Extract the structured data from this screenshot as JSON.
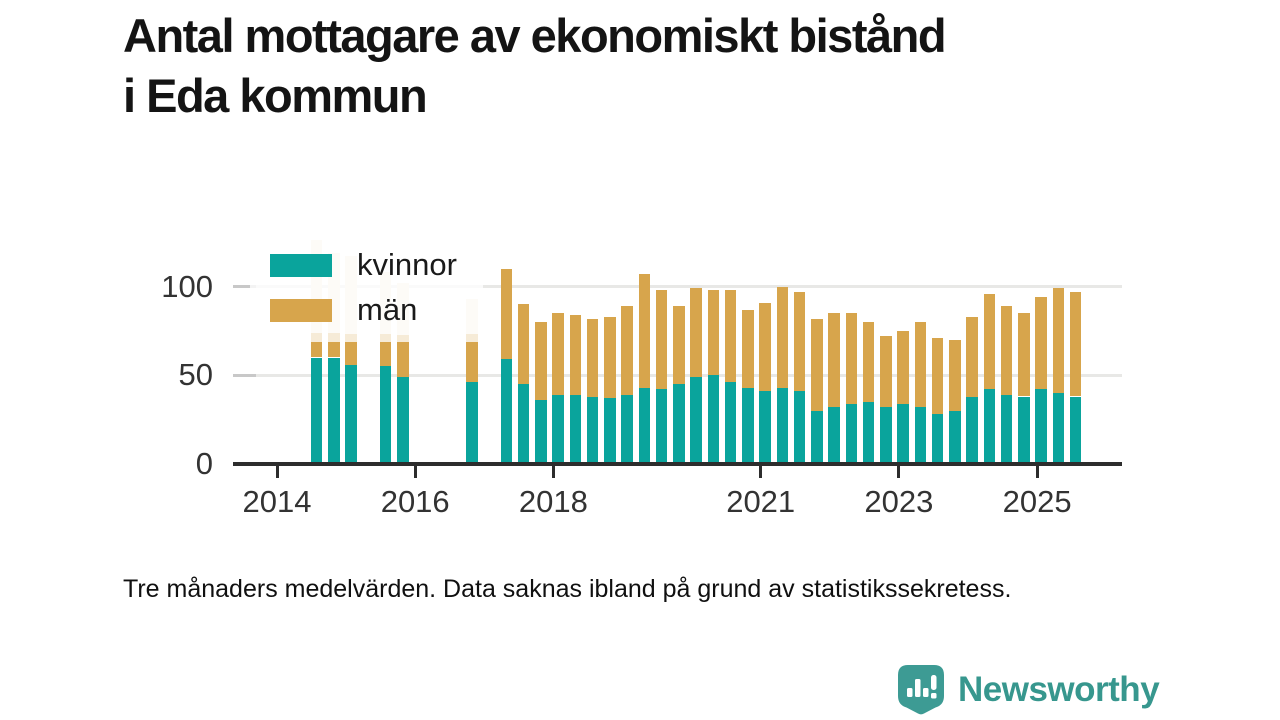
{
  "title": {
    "line1": "Antal mottagare av ekonomiskt bistånd",
    "line2": "i Eda kommun"
  },
  "footnote": "Tre månaders medelvärden. Data saknas ibland på grund av statistikssekretess.",
  "logo": {
    "text": "Newsworthy"
  },
  "legend": [
    {
      "label": "kvinnor",
      "color": "#0aa49c"
    },
    {
      "label": "män",
      "color": "#d7a54c"
    }
  ],
  "colors": {
    "kvinnor": "#0aa49c",
    "man": "#d7a54c",
    "saknas": "#f4ecdb",
    "axis": "#2d2d2d",
    "grid": "#e8e8e6",
    "grid_stub": "#c8c8c8",
    "tick_text": "#333333",
    "logo": "#37978e"
  },
  "chart_data": {
    "type": "bar",
    "stacked": true,
    "title": "Antal mottagare av ekonomiskt bistånd i Eda kommun",
    "xlabel": "",
    "ylabel": "",
    "ylim": [
      0,
      130
    ],
    "yticks": [
      0,
      50,
      100
    ],
    "xticks": [
      2014,
      2016,
      2018,
      2021,
      2023,
      2025
    ],
    "legend_position": "top-left",
    "grid": true,
    "series_names": [
      "kvinnor",
      "män",
      "data saknas"
    ],
    "bars": [
      {
        "period": "2014 Q3",
        "kvinnor": 60,
        "man": 14,
        "saknas": 52
      },
      {
        "period": "2014 Q4",
        "kvinnor": 60,
        "man": 14,
        "saknas": 45
      },
      {
        "period": "2015 Q1",
        "kvinnor": 56,
        "man": 17,
        "saknas": 44
      },
      {
        "period": "2015 Q3",
        "kvinnor": 55,
        "man": 18,
        "saknas": 35
      },
      {
        "period": "2015 Q4",
        "kvinnor": 49,
        "man": 24,
        "saknas": 29
      },
      {
        "period": "2016 Q4",
        "kvinnor": 46,
        "man": 27,
        "saknas": 20
      },
      {
        "period": "2017 Q2",
        "kvinnor": 59,
        "man": 51,
        "saknas": 0
      },
      {
        "period": "2017 Q3",
        "kvinnor": 45,
        "man": 45,
        "saknas": 0
      },
      {
        "period": "2017 Q4",
        "kvinnor": 36,
        "man": 44,
        "saknas": 0
      },
      {
        "period": "2018 Q1",
        "kvinnor": 39,
        "man": 46,
        "saknas": 0
      },
      {
        "period": "2018 Q2",
        "kvinnor": 39,
        "man": 45,
        "saknas": 0
      },
      {
        "period": "2018 Q3",
        "kvinnor": 38,
        "man": 44,
        "saknas": 0
      },
      {
        "period": "2018 Q4",
        "kvinnor": 37,
        "man": 46,
        "saknas": 0
      },
      {
        "period": "2019 Q1",
        "kvinnor": 39,
        "man": 50,
        "saknas": 0
      },
      {
        "period": "2019 Q2",
        "kvinnor": 43,
        "man": 64,
        "saknas": 0
      },
      {
        "period": "2019 Q3",
        "kvinnor": 42,
        "man": 56,
        "saknas": 0
      },
      {
        "period": "2019 Q4",
        "kvinnor": 45,
        "man": 44,
        "saknas": 0
      },
      {
        "period": "2020 Q1",
        "kvinnor": 49,
        "man": 50,
        "saknas": 0
      },
      {
        "period": "2020 Q2",
        "kvinnor": 50,
        "man": 48,
        "saknas": 0
      },
      {
        "period": "2020 Q3",
        "kvinnor": 46,
        "man": 52,
        "saknas": 0
      },
      {
        "period": "2020 Q4",
        "kvinnor": 43,
        "man": 44,
        "saknas": 0
      },
      {
        "period": "2021 Q1",
        "kvinnor": 41,
        "man": 50,
        "saknas": 0
      },
      {
        "period": "2021 Q2",
        "kvinnor": 43,
        "man": 57,
        "saknas": 0
      },
      {
        "period": "2021 Q3",
        "kvinnor": 41,
        "man": 56,
        "saknas": 0
      },
      {
        "period": "2021 Q4",
        "kvinnor": 30,
        "man": 52,
        "saknas": 0
      },
      {
        "period": "2022 Q1",
        "kvinnor": 32,
        "man": 53,
        "saknas": 0
      },
      {
        "period": "2022 Q2",
        "kvinnor": 34,
        "man": 51,
        "saknas": 0
      },
      {
        "period": "2022 Q3",
        "kvinnor": 35,
        "man": 45,
        "saknas": 0
      },
      {
        "period": "2022 Q4",
        "kvinnor": 32,
        "man": 40,
        "saknas": 0
      },
      {
        "period": "2023 Q1",
        "kvinnor": 34,
        "man": 41,
        "saknas": 0
      },
      {
        "period": "2023 Q2",
        "kvinnor": 32,
        "man": 48,
        "saknas": 0
      },
      {
        "period": "2023 Q3",
        "kvinnor": 28,
        "man": 43,
        "saknas": 0
      },
      {
        "period": "2023 Q4",
        "kvinnor": 30,
        "man": 40,
        "saknas": 0
      },
      {
        "period": "2024 Q1",
        "kvinnor": 38,
        "man": 45,
        "saknas": 0
      },
      {
        "period": "2024 Q2",
        "kvinnor": 42,
        "man": 54,
        "saknas": 0
      },
      {
        "period": "2024 Q3",
        "kvinnor": 39,
        "man": 50,
        "saknas": 0
      },
      {
        "period": "2024 Q4",
        "kvinnor": 38,
        "man": 47,
        "saknas": 0
      },
      {
        "period": "2025 Q1",
        "kvinnor": 42,
        "man": 52,
        "saknas": 0
      },
      {
        "period": "2025 Q2",
        "kvinnor": 40,
        "man": 59,
        "saknas": 0
      },
      {
        "period": "2025 Q3",
        "kvinnor": 38,
        "man": 59,
        "saknas": 0
      }
    ]
  }
}
